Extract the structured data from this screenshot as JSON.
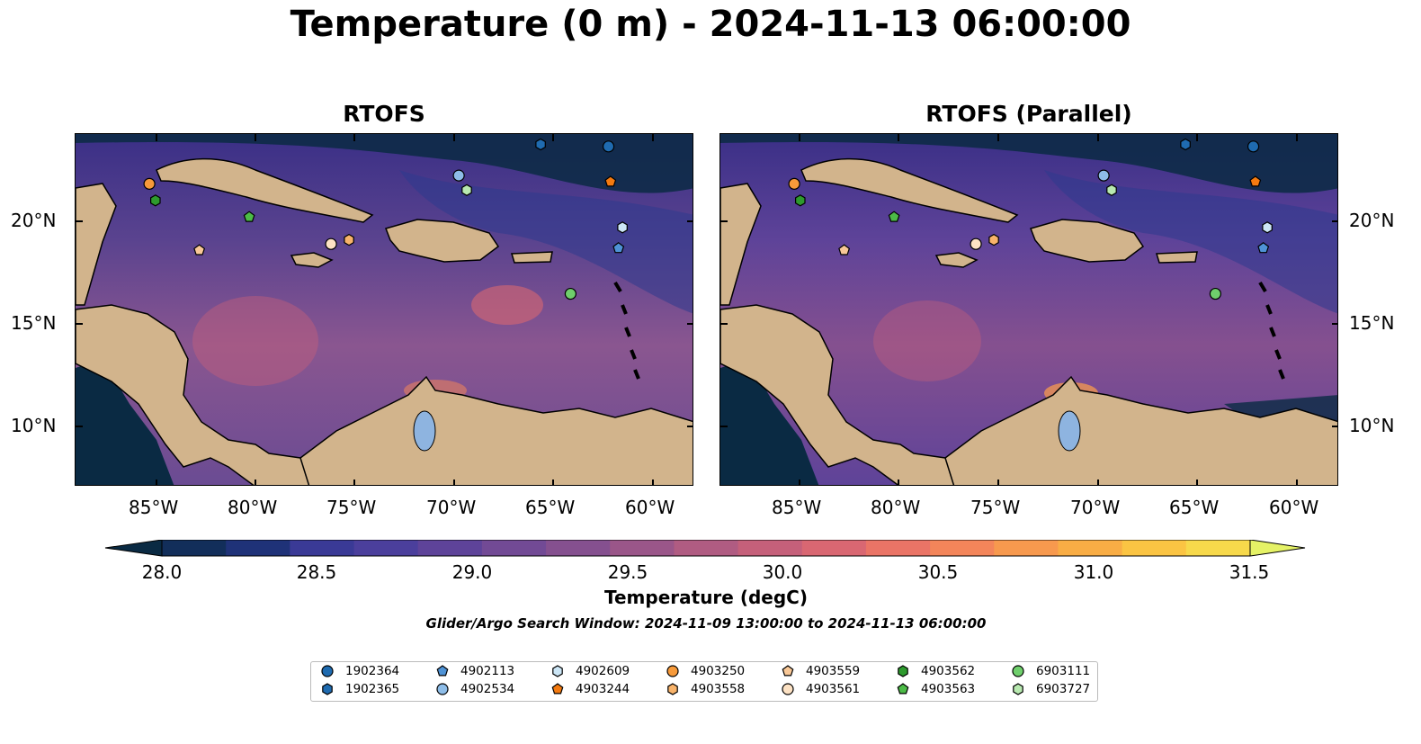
{
  "figure": {
    "title": "Temperature (0 m) - 2024-11-13 06:00:00",
    "panels": [
      {
        "title": "RTOFS"
      },
      {
        "title": "RTOFS (Parallel)"
      }
    ],
    "x_ticks": [
      "85°W",
      "80°W",
      "75°W",
      "70°W",
      "65°W",
      "60°W"
    ],
    "y_ticks": [
      "20°N",
      "15°N",
      "10°N"
    ],
    "colorbar": {
      "title": "Temperature (degC)",
      "ticks": [
        "28.0",
        "28.5",
        "29.0",
        "29.5",
        "30.0",
        "30.5",
        "31.0",
        "31.5"
      ],
      "colors": [
        "#0a2a43",
        "#122e5a",
        "#1f3278",
        "#3a3a96",
        "#4b3f9c",
        "#5e4399",
        "#724a95",
        "#85508f",
        "#9a5689",
        "#b05c82",
        "#c5607a",
        "#d96772",
        "#ea7466",
        "#f3855a",
        "#f7994e",
        "#f9ad45",
        "#fbc443",
        "#f7d94b",
        "#e5f266"
      ]
    },
    "search_window": "Glider/Argo Search Window: 2024-11-09 13:00:00 to 2024-11-13 06:00:00"
  },
  "chart_data": {
    "type": "map",
    "variable": "Temperature (degC)",
    "depth": "0 m",
    "time": "2024-11-13 06:00:00",
    "lon_range": [
      -89,
      -58
    ],
    "lat_range": [
      7,
      24
    ],
    "color_range": [
      28.0,
      31.5
    ],
    "panels": [
      "RTOFS",
      "RTOFS (Parallel)"
    ],
    "floats": [
      {
        "id": "1902364",
        "lon": -62.3,
        "lat": 23.4,
        "marker": "circle",
        "color": "#1f6bb0"
      },
      {
        "id": "1902365",
        "lon": -65.7,
        "lat": 23.5,
        "marker": "hexagon",
        "color": "#1f6bb0"
      },
      {
        "id": "4902113",
        "lon": -61.8,
        "lat": 18.5,
        "marker": "pentagon",
        "color": "#4f93d6"
      },
      {
        "id": "4902534",
        "lon": -69.8,
        "lat": 22.0,
        "marker": "circle",
        "color": "#8ebde8"
      },
      {
        "id": "4902609",
        "lon": -61.6,
        "lat": 19.5,
        "marker": "hexagon",
        "color": "#cce6f6"
      },
      {
        "id": "4903244",
        "lon": -62.2,
        "lat": 21.7,
        "marker": "pentagon",
        "color": "#f47a10"
      },
      {
        "id": "4903250",
        "lon": -85.3,
        "lat": 21.6,
        "marker": "circle",
        "color": "#f79a3a"
      },
      {
        "id": "4903558",
        "lon": -75.3,
        "lat": 18.9,
        "marker": "hexagon",
        "color": "#f8b36a"
      },
      {
        "id": "4903559",
        "lon": -82.8,
        "lat": 18.4,
        "marker": "pentagon",
        "color": "#f9c897"
      },
      {
        "id": "4903561",
        "lon": -76.2,
        "lat": 18.7,
        "marker": "circle",
        "color": "#fde2c4"
      },
      {
        "id": "4903562",
        "lon": -85.0,
        "lat": 20.8,
        "marker": "hexagon",
        "color": "#2e9a2e"
      },
      {
        "id": "4903563",
        "lon": -80.3,
        "lat": 20.0,
        "marker": "pentagon",
        "color": "#4cbb47"
      },
      {
        "id": "6903111",
        "lon": -64.2,
        "lat": 16.3,
        "marker": "circle",
        "color": "#6fcf6c"
      },
      {
        "id": "6903727",
        "lon": -69.4,
        "lat": 21.3,
        "marker": "hexagon",
        "color": "#b8e9b0"
      }
    ]
  }
}
